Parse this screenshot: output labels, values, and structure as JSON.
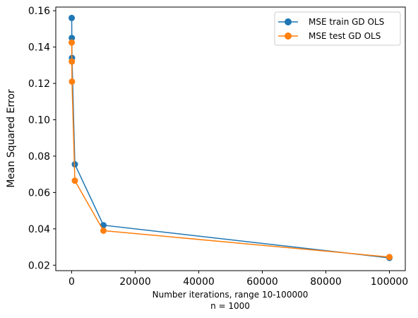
{
  "chart_data": {
    "type": "line",
    "xlabel": "Number iterations, range 10-100000",
    "xlabel_line2": "n = 1000",
    "ylabel": "Mean Squared Error",
    "xlim": [
      -5000,
      105000
    ],
    "ylim": [
      0.017,
      0.162
    ],
    "xticks": [
      0,
      20000,
      40000,
      60000,
      80000,
      100000
    ],
    "xtick_labels": [
      "0",
      "20000",
      "40000",
      "60000",
      "80000",
      "100000"
    ],
    "yticks": [
      0.02,
      0.04,
      0.06,
      0.08,
      0.1,
      0.12,
      0.14,
      0.16
    ],
    "ytick_labels": [
      "0.02",
      "0.04",
      "0.06",
      "0.08",
      "0.10",
      "0.12",
      "0.14",
      "0.16"
    ],
    "grid": false,
    "legend_position": "upper right",
    "x": [
      10,
      50,
      100,
      1000,
      10000,
      100000
    ],
    "series": [
      {
        "name": "MSE train GD OLS",
        "color": "#1f77b4",
        "values": [
          0.156,
          0.145,
          0.134,
          0.0755,
          0.042,
          0.024
        ]
      },
      {
        "name": "MSE test GD OLS",
        "color": "#ff7f0e",
        "values": [
          0.1425,
          0.132,
          0.121,
          0.0665,
          0.039,
          0.0245
        ]
      }
    ]
  }
}
